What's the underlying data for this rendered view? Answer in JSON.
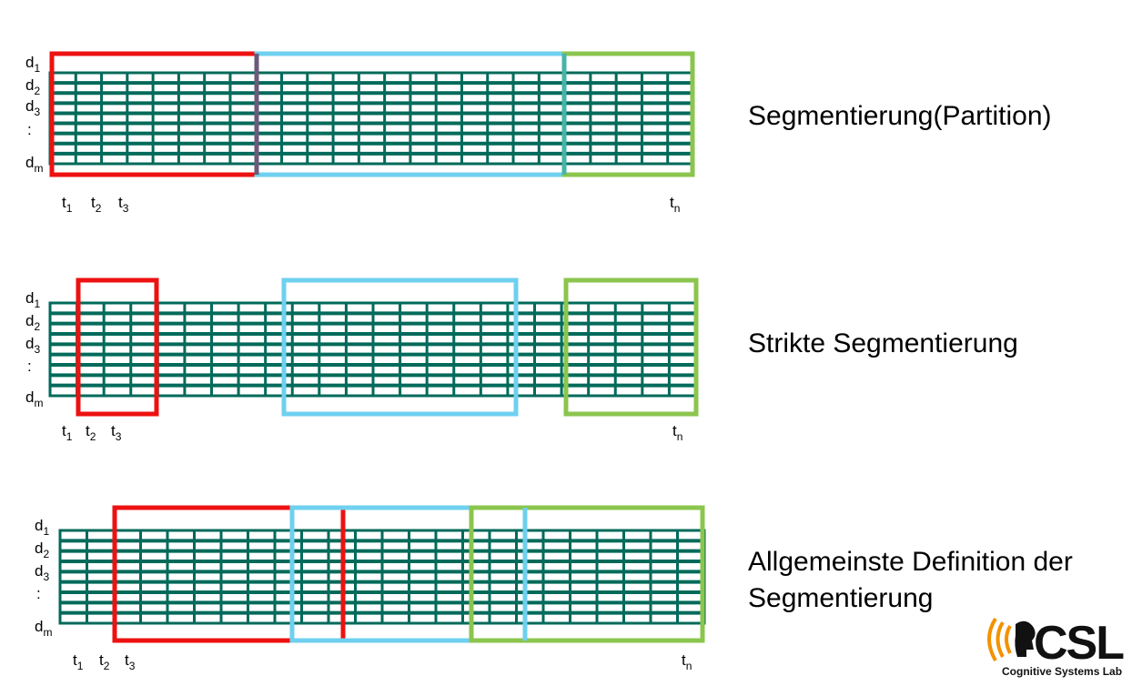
{
  "colors": {
    "grid": "#006a5a",
    "red": "#ee1111",
    "blue": "#6fd0ef",
    "green": "#8bc54e",
    "overlap_red_blue": "#6c5a7a",
    "overlap_blue_green": "#45b5a8",
    "logo_text": "#111111",
    "logo_arcs": "#f39200"
  },
  "labels": {
    "d1_base": "d",
    "d1_sub": "1",
    "d2_base": "d",
    "d2_sub": "2",
    "d3_base": "d",
    "d3_sub": "3",
    "dots": ":",
    "dm_base": "d",
    "dm_sub": "m",
    "t1_base": "t",
    "t1_sub": "1",
    "t2_base": "t",
    "t2_sub": "2",
    "t3_base": "t",
    "t3_sub": "3",
    "tn_base": "t",
    "tn_sub": "n"
  },
  "diagrams": [
    {
      "caption_lines": [
        "Segmentierung(Partition)"
      ]
    },
    {
      "caption_lines": [
        "Strikte Segmentierung"
      ]
    },
    {
      "caption_lines": [
        "Allgemeinste Definition der",
        "Segmentierung"
      ]
    }
  ],
  "logo": {
    "wordmark": "CSL",
    "tagline": "Cognitive Systems Lab",
    "icon": "head-with-sound-waves-icon"
  }
}
